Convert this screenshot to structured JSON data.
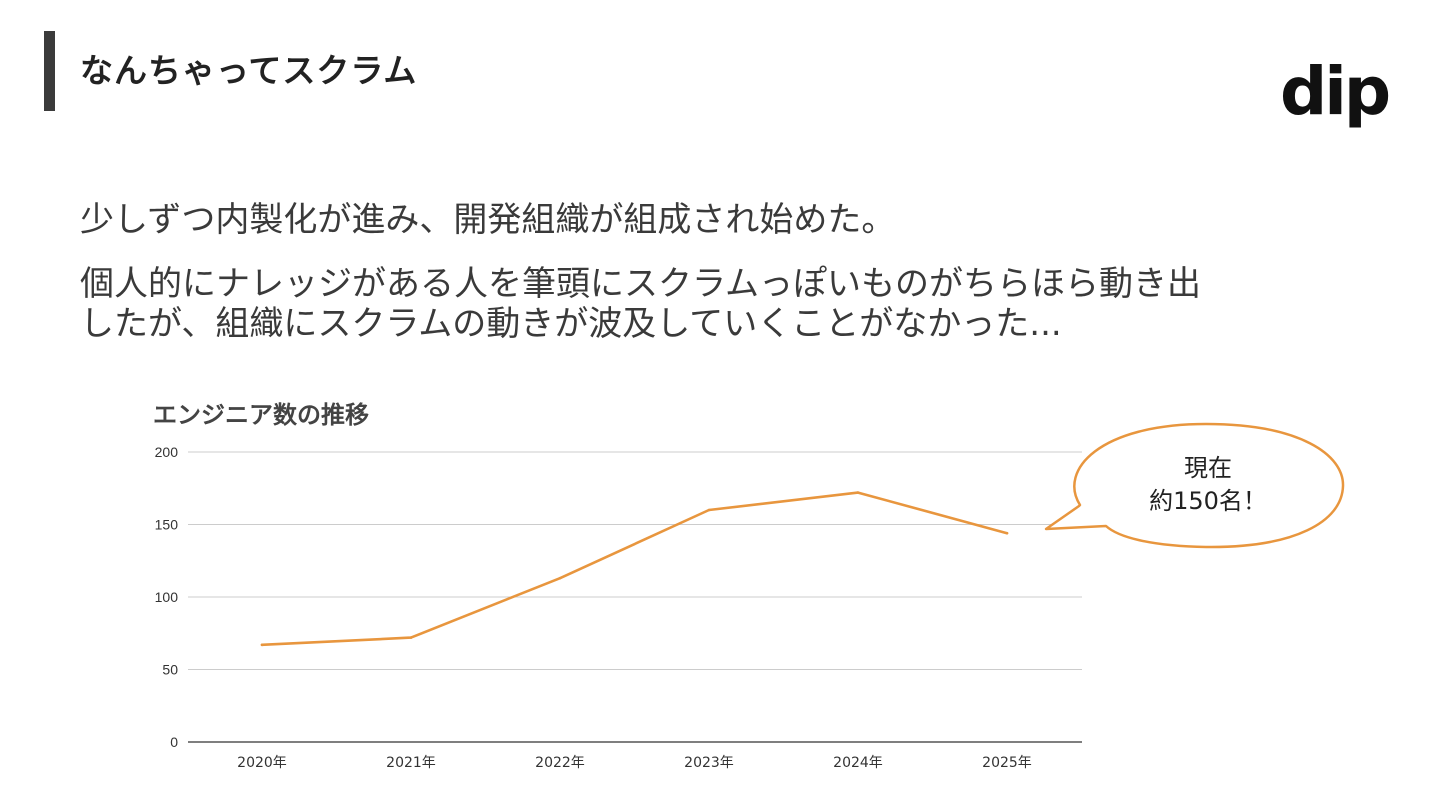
{
  "header": {
    "title": "なんちゃってスクラム",
    "logo_text": "dip"
  },
  "body": {
    "line1": "少しずつ内製化が進み、開発組織が組成され始めた。",
    "line2a": "個人的にナレッジがある人を筆頭にスクラムっぽいものがちらほら動き出",
    "line2b": "したが、組織にスクラムの動きが波及していくことがなかった..."
  },
  "callout": {
    "line1": "現在",
    "line2": "約150名！",
    "border_color": "#e8963e"
  },
  "chart_data": {
    "type": "line",
    "title": "エンジニア数の推移",
    "categories": [
      "2020年",
      "2021年",
      "2022年",
      "2023年",
      "2024年",
      "2025年"
    ],
    "series": [
      {
        "values": [
          67,
          72,
          113,
          160,
          172,
          144
        ]
      }
    ],
    "ylim": [
      0,
      200
    ],
    "yticks": [
      0,
      50,
      100,
      150,
      200
    ],
    "grid": true,
    "line_color": "#e8963e",
    "grid_color": "#cccccc",
    "axis_color": "#333333"
  }
}
